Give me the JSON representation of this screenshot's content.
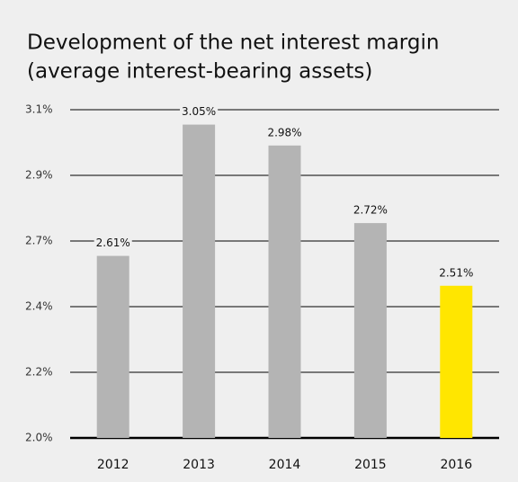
{
  "chart_data": {
    "type": "bar",
    "title": [
      "Development of the net interest margin",
      "(average interest-bearing assets)"
    ],
    "categories": [
      "2012",
      "2013",
      "2014",
      "2015",
      "2016"
    ],
    "values": [
      2.61,
      3.05,
      2.98,
      2.72,
      2.51
    ],
    "value_labels": [
      "2.61%",
      "3.05%",
      "2.98%",
      "2.72%",
      "2.51%"
    ],
    "colors": [
      "#b4b4b4",
      "#b4b4b4",
      "#b4b4b4",
      "#b4b4b4",
      "#ffe600"
    ],
    "ylim": [
      2.0,
      3.1
    ],
    "yticks": [
      {
        "value": 2.0,
        "label": "2.0%"
      },
      {
        "value": 2.22,
        "label": "2.2%"
      },
      {
        "value": 2.44,
        "label": "2.4%"
      },
      {
        "value": 2.66,
        "label": "2.7%"
      },
      {
        "value": 2.88,
        "label": "2.9%"
      },
      {
        "value": 3.1,
        "label": "3.1%"
      }
    ],
    "grid": true
  }
}
